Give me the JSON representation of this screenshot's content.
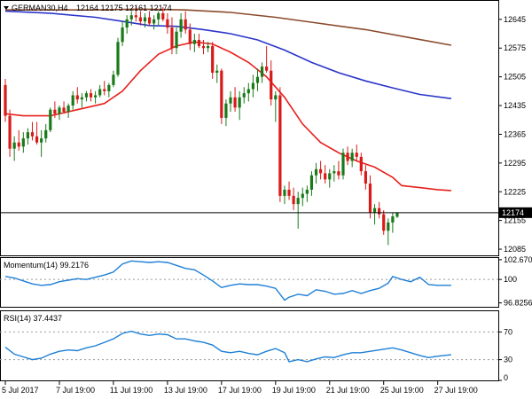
{
  "chart_data": [
    {
      "type": "candlestick",
      "symbol_label": "GERMAN30,H4",
      "ohlc_label": "12164 12175 12161 12174",
      "last_price_label": "12174",
      "last_price": 12174,
      "ylim": [
        12070,
        12690
      ],
      "y_ticks": [
        12645,
        12575,
        12505,
        12435,
        12365,
        12295,
        12225,
        12155,
        12085
      ],
      "x_tick_labels": [
        "5 Jul 2017",
        "7 Jul 19:00",
        "11 Jul 19:00",
        "13 Jul 19:00",
        "17 Jul 19:00",
        "19 Jul 19:00",
        "21 Jul 19:00",
        "25 Jul 19:00",
        "27 Jul 19:00"
      ],
      "x_tick_bar_index": [
        0,
        12,
        24,
        36,
        48,
        60,
        72,
        84,
        96
      ],
      "colors": {
        "up": "#1a7a1a",
        "down": "#d91a1a",
        "ma_fast": "#e8201c",
        "ma_mid": "#2b35c9",
        "ma_slow": "#8b4a2b"
      },
      "candles": [
        [
          12485,
          12500,
          12395,
          12410
        ],
        [
          12410,
          12425,
          12310,
          12330
        ],
        [
          12330,
          12360,
          12300,
          12345
        ],
        [
          12345,
          12375,
          12325,
          12335
        ],
        [
          12335,
          12370,
          12320,
          12355
        ],
        [
          12355,
          12380,
          12340,
          12370
        ],
        [
          12370,
          12395,
          12350,
          12360
        ],
        [
          12360,
          12395,
          12340,
          12345
        ],
        [
          12345,
          12375,
          12310,
          12355
        ],
        [
          12355,
          12390,
          12345,
          12375
        ],
        [
          12375,
          12430,
          12370,
          12425
        ],
        [
          12425,
          12445,
          12405,
          12415
        ],
        [
          12415,
          12435,
          12400,
          12430
        ],
        [
          12430,
          12445,
          12415,
          12420
        ],
        [
          12420,
          12440,
          12405,
          12435
        ],
        [
          12435,
          12470,
          12425,
          12460
        ],
        [
          12460,
          12480,
          12440,
          12450
        ],
        [
          12450,
          12465,
          12430,
          12455
        ],
        [
          12455,
          12470,
          12445,
          12465
        ],
        [
          12465,
          12475,
          12445,
          12455
        ],
        [
          12455,
          12470,
          12440,
          12460
        ],
        [
          12460,
          12485,
          12455,
          12475
        ],
        [
          12475,
          12495,
          12460,
          12470
        ],
        [
          12470,
          12490,
          12455,
          12485
        ],
        [
          12485,
          12520,
          12480,
          12510
        ],
        [
          12510,
          12600,
          12505,
          12590
        ],
        [
          12590,
          12640,
          12580,
          12625
        ],
        [
          12625,
          12655,
          12610,
          12645
        ],
        [
          12645,
          12665,
          12630,
          12655
        ],
        [
          12655,
          12675,
          12640,
          12650
        ],
        [
          12650,
          12665,
          12630,
          12640
        ],
        [
          12640,
          12660,
          12625,
          12650
        ],
        [
          12650,
          12665,
          12630,
          12635
        ],
        [
          12635,
          12655,
          12620,
          12645
        ],
        [
          12645,
          12665,
          12630,
          12660
        ],
        [
          12660,
          12675,
          12640,
          12645
        ],
        [
          12645,
          12660,
          12610,
          12625
        ],
        [
          12625,
          12650,
          12560,
          12575
        ],
        [
          12575,
          12625,
          12560,
          12615
        ],
        [
          12615,
          12660,
          12600,
          12645
        ],
        [
          12645,
          12665,
          12610,
          12620
        ],
        [
          12620,
          12635,
          12570,
          12585
        ],
        [
          12585,
          12610,
          12565,
          12595
        ],
        [
          12595,
          12610,
          12575,
          12580
        ],
        [
          12580,
          12595,
          12560,
          12575
        ],
        [
          12575,
          12590,
          12565,
          12580
        ],
        [
          12580,
          12590,
          12500,
          12515
        ],
        [
          12515,
          12535,
          12490,
          12520
        ],
        [
          12520,
          12525,
          12390,
          12405
        ],
        [
          12405,
          12450,
          12385,
          12440
        ],
        [
          12440,
          12470,
          12420,
          12455
        ],
        [
          12455,
          12480,
          12420,
          12430
        ],
        [
          12430,
          12470,
          12400,
          12455
        ],
        [
          12455,
          12480,
          12440,
          12465
        ],
        [
          12465,
          12490,
          12445,
          12475
        ],
        [
          12475,
          12510,
          12455,
          12490
        ],
        [
          12490,
          12525,
          12470,
          12505
        ],
        [
          12505,
          12540,
          12490,
          12530
        ],
        [
          12530,
          12580,
          12515,
          12520
        ],
        [
          12520,
          12545,
          12435,
          12450
        ],
        [
          12450,
          12470,
          12395,
          12460
        ],
        [
          12460,
          12480,
          12200,
          12215
        ],
        [
          12215,
          12240,
          12195,
          12230
        ],
        [
          12230,
          12250,
          12205,
          12215
        ],
        [
          12215,
          12235,
          12180,
          12195
        ],
        [
          12195,
          12225,
          12135,
          12210
        ],
        [
          12210,
          12235,
          12190,
          12220
        ],
        [
          12220,
          12240,
          12200,
          12230
        ],
        [
          12230,
          12275,
          12215,
          12265
        ],
        [
          12265,
          12295,
          12245,
          12280
        ],
        [
          12280,
          12300,
          12255,
          12270
        ],
        [
          12270,
          12290,
          12245,
          12255
        ],
        [
          12255,
          12280,
          12235,
          12270
        ],
        [
          12270,
          12290,
          12250,
          12275
        ],
        [
          12275,
          12300,
          12255,
          12265
        ],
        [
          12265,
          12330,
          12255,
          12320
        ],
        [
          12320,
          12335,
          12290,
          12300
        ],
        [
          12300,
          12330,
          12285,
          12320
        ],
        [
          12320,
          12340,
          12300,
          12310
        ],
        [
          12310,
          12320,
          12265,
          12275
        ],
        [
          12275,
          12290,
          12230,
          12245
        ],
        [
          12245,
          12265,
          12160,
          12175
        ],
        [
          12175,
          12195,
          12145,
          12185
        ],
        [
          12185,
          12200,
          12160,
          12170
        ],
        [
          12170,
          12180,
          12120,
          12130
        ],
        [
          12130,
          12160,
          12095,
          12150
        ],
        [
          12150,
          12175,
          12125,
          12165
        ],
        [
          12164,
          12175,
          12161,
          12174
        ]
      ],
      "ma_fast": [
        [
          0,
          12415
        ],
        [
          4,
          12410
        ],
        [
          10,
          12410
        ],
        [
          16,
          12425
        ],
        [
          22,
          12440
        ],
        [
          26,
          12470
        ],
        [
          30,
          12520
        ],
        [
          34,
          12560
        ],
        [
          38,
          12580
        ],
        [
          42,
          12590
        ],
        [
          46,
          12585
        ],
        [
          50,
          12565
        ],
        [
          54,
          12540
        ],
        [
          58,
          12505
        ],
        [
          62,
          12455
        ],
        [
          66,
          12390
        ],
        [
          70,
          12345
        ],
        [
          74,
          12320
        ],
        [
          78,
          12300
        ],
        [
          82,
          12285
        ],
        [
          86,
          12260
        ],
        [
          88,
          12240
        ],
        [
          92,
          12235
        ],
        [
          96,
          12230
        ],
        [
          99,
          12228
        ]
      ],
      "ma_mid": [
        [
          0,
          12665
        ],
        [
          10,
          12660
        ],
        [
          20,
          12650
        ],
        [
          26,
          12640
        ],
        [
          32,
          12630
        ],
        [
          38,
          12628
        ],
        [
          44,
          12620
        ],
        [
          50,
          12610
        ],
        [
          56,
          12595
        ],
        [
          62,
          12570
        ],
        [
          68,
          12540
        ],
        [
          74,
          12515
        ],
        [
          80,
          12495
        ],
        [
          86,
          12478
        ],
        [
          92,
          12462
        ],
        [
          99,
          12452
        ]
      ],
      "ma_slow": [
        [
          0,
          12668
        ],
        [
          10,
          12668
        ],
        [
          20,
          12668
        ],
        [
          30,
          12670
        ],
        [
          40,
          12668
        ],
        [
          50,
          12662
        ],
        [
          60,
          12650
        ],
        [
          70,
          12635
        ],
        [
          80,
          12620
        ],
        [
          90,
          12600
        ],
        [
          99,
          12582
        ]
      ]
    },
    {
      "type": "line",
      "indicator_label": "Momentum(14) 99.2176",
      "ylim": [
        96.3,
        102.9
      ],
      "y_ticks": [
        102.6707,
        100,
        96.8256
      ],
      "level_line": 100,
      "color": "#1e7fd6",
      "points": [
        [
          0,
          100.4
        ],
        [
          2,
          100.2
        ],
        [
          4,
          99.8
        ],
        [
          6,
          99.4
        ],
        [
          8,
          99.2
        ],
        [
          10,
          99.3
        ],
        [
          12,
          99.7
        ],
        [
          14,
          99.9
        ],
        [
          16,
          100.1
        ],
        [
          18,
          100.0
        ],
        [
          20,
          100.3
        ],
        [
          22,
          100.6
        ],
        [
          24,
          101.0
        ],
        [
          26,
          102.1
        ],
        [
          28,
          102.5
        ],
        [
          30,
          102.4
        ],
        [
          32,
          102.3
        ],
        [
          34,
          102.4
        ],
        [
          36,
          102.3
        ],
        [
          38,
          101.9
        ],
        [
          40,
          101.5
        ],
        [
          42,
          101.3
        ],
        [
          44,
          100.6
        ],
        [
          46,
          99.8
        ],
        [
          48,
          98.9
        ],
        [
          50,
          99.2
        ],
        [
          52,
          99.4
        ],
        [
          54,
          99.3
        ],
        [
          56,
          99.3
        ],
        [
          58,
          99.1
        ],
        [
          60,
          98.8
        ],
        [
          62,
          97.2
        ],
        [
          63,
          97.6
        ],
        [
          65,
          98.0
        ],
        [
          67,
          97.8
        ],
        [
          69,
          98.6
        ],
        [
          71,
          98.4
        ],
        [
          73,
          98.0
        ],
        [
          75,
          98.1
        ],
        [
          77,
          98.5
        ],
        [
          79,
          98.1
        ],
        [
          81,
          98.5
        ],
        [
          83,
          98.8
        ],
        [
          85,
          99.5
        ],
        [
          86,
          100.4
        ],
        [
          88,
          100.0
        ],
        [
          90,
          99.7
        ],
        [
          92,
          100.3
        ],
        [
          94,
          99.3
        ],
        [
          96,
          99.2
        ],
        [
          99,
          99.2
        ]
      ]
    },
    {
      "type": "line",
      "indicator_label": "RSI(14) 37.4437",
      "ylim": [
        0,
        100
      ],
      "y_ticks": [
        70,
        30,
        0
      ],
      "level_lines": [
        70,
        30
      ],
      "color": "#1e7fd6",
      "points": [
        [
          0,
          48
        ],
        [
          2,
          38
        ],
        [
          4,
          34
        ],
        [
          6,
          30
        ],
        [
          8,
          32
        ],
        [
          10,
          38
        ],
        [
          12,
          42
        ],
        [
          14,
          44
        ],
        [
          16,
          43
        ],
        [
          18,
          47
        ],
        [
          20,
          50
        ],
        [
          22,
          55
        ],
        [
          24,
          60
        ],
        [
          26,
          68
        ],
        [
          28,
          71
        ],
        [
          30,
          67
        ],
        [
          32,
          65
        ],
        [
          34,
          67
        ],
        [
          36,
          66
        ],
        [
          38,
          60
        ],
        [
          40,
          60
        ],
        [
          42,
          57
        ],
        [
          44,
          55
        ],
        [
          46,
          51
        ],
        [
          48,
          42
        ],
        [
          50,
          40
        ],
        [
          52,
          42
        ],
        [
          54,
          39
        ],
        [
          56,
          37
        ],
        [
          58,
          42
        ],
        [
          60,
          46
        ],
        [
          62,
          40
        ],
        [
          63,
          27
        ],
        [
          65,
          30
        ],
        [
          67,
          27
        ],
        [
          69,
          31
        ],
        [
          71,
          34
        ],
        [
          73,
          33
        ],
        [
          75,
          37
        ],
        [
          77,
          40
        ],
        [
          79,
          40
        ],
        [
          81,
          42
        ],
        [
          83,
          44
        ],
        [
          85,
          46
        ],
        [
          86,
          47
        ],
        [
          88,
          44
        ],
        [
          90,
          40
        ],
        [
          92,
          36
        ],
        [
          94,
          33
        ],
        [
          96,
          35
        ],
        [
          99,
          37
        ]
      ]
    }
  ]
}
